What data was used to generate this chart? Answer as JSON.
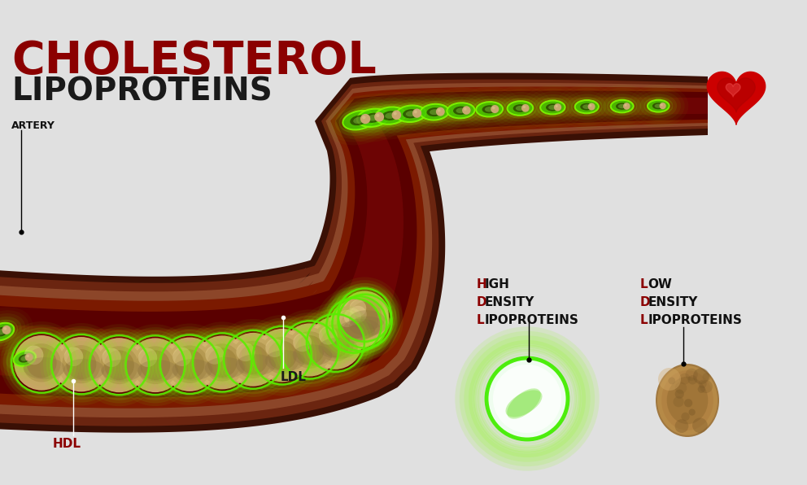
{
  "bg_color": "#e0e0e0",
  "title_cholesterol": "CHOLESTEROL",
  "title_lipoproteins": "LIPOPROTEINS",
  "title_color": "#8B0000",
  "title_lipo_color": "#1a1a1a",
  "label_artery": "ARTERY",
  "label_hdl": "HDL",
  "label_ldl": "LDL",
  "label_hdl_color": "#8B0000",
  "label_ldl_color": "#1a1a1a",
  "label_high_density_line1": "HIGH",
  "label_high_density_line2": "DENSITY",
  "label_high_density_line3": "LIPOPROTEINS",
  "label_low_density_line1": "LOW",
  "label_low_density_line2": "DENSITY",
  "label_low_density_line3": "LIPOPROTEINS",
  "heart_color": "#CC0000"
}
